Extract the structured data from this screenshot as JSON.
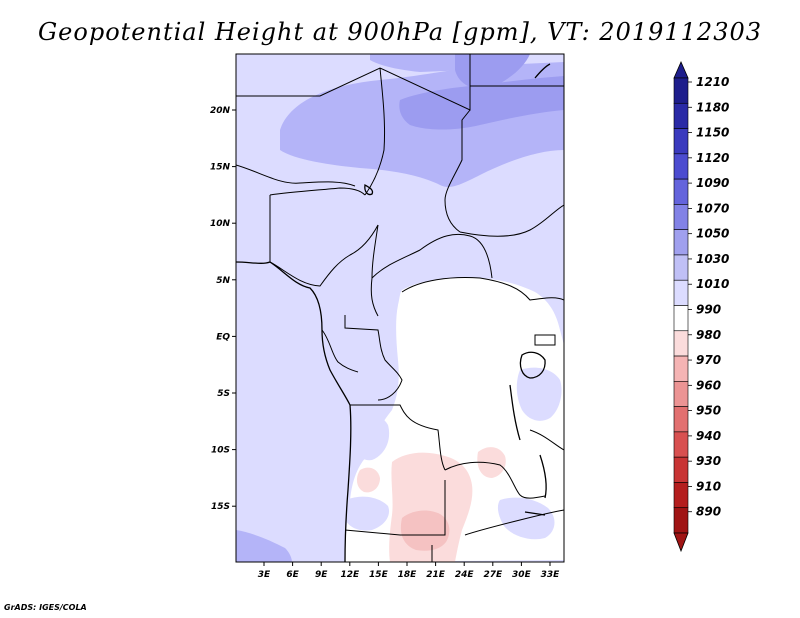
{
  "title": "Geopotential Height at 900hPa [gpm], VT: 2019112303",
  "credit": "GrADS: IGES/COLA",
  "map": {
    "lon_labels": [
      "3E",
      "6E",
      "9E",
      "12E",
      "15E",
      "18E",
      "21E",
      "24E",
      "27E",
      "30E",
      "33E"
    ],
    "lat_labels": [
      "20N",
      "15N",
      "10N",
      "5N",
      "EQ",
      "5S",
      "10S",
      "15S"
    ],
    "fill_colors": {
      "1010_1030": "#dcdcff",
      "1030_1050": "#b4b4f8",
      "1050_1070": "#9c9cf0",
      "990_1010": "#ffffff",
      "980_990": "#fbdcdc",
      "970_980": "#f5c2c2"
    }
  },
  "colorbar": {
    "levels": [
      "1210",
      "1180",
      "1150",
      "1120",
      "1090",
      "1070",
      "1050",
      "1030",
      "1010",
      "990",
      "980",
      "970",
      "960",
      "950",
      "940",
      "930",
      "910",
      "890"
    ],
    "colors": [
      "#1e1e8c",
      "#2a2aa6",
      "#3a3abe",
      "#4c4cd0",
      "#6464dc",
      "#8282e6",
      "#a0a0ee",
      "#c0c0f6",
      "#dcdcff",
      "#ffffff",
      "#fbdcdc",
      "#f5b4b4",
      "#ec9494",
      "#e27070",
      "#d85050",
      "#c83434",
      "#b41e1e",
      "#a01414"
    ]
  }
}
